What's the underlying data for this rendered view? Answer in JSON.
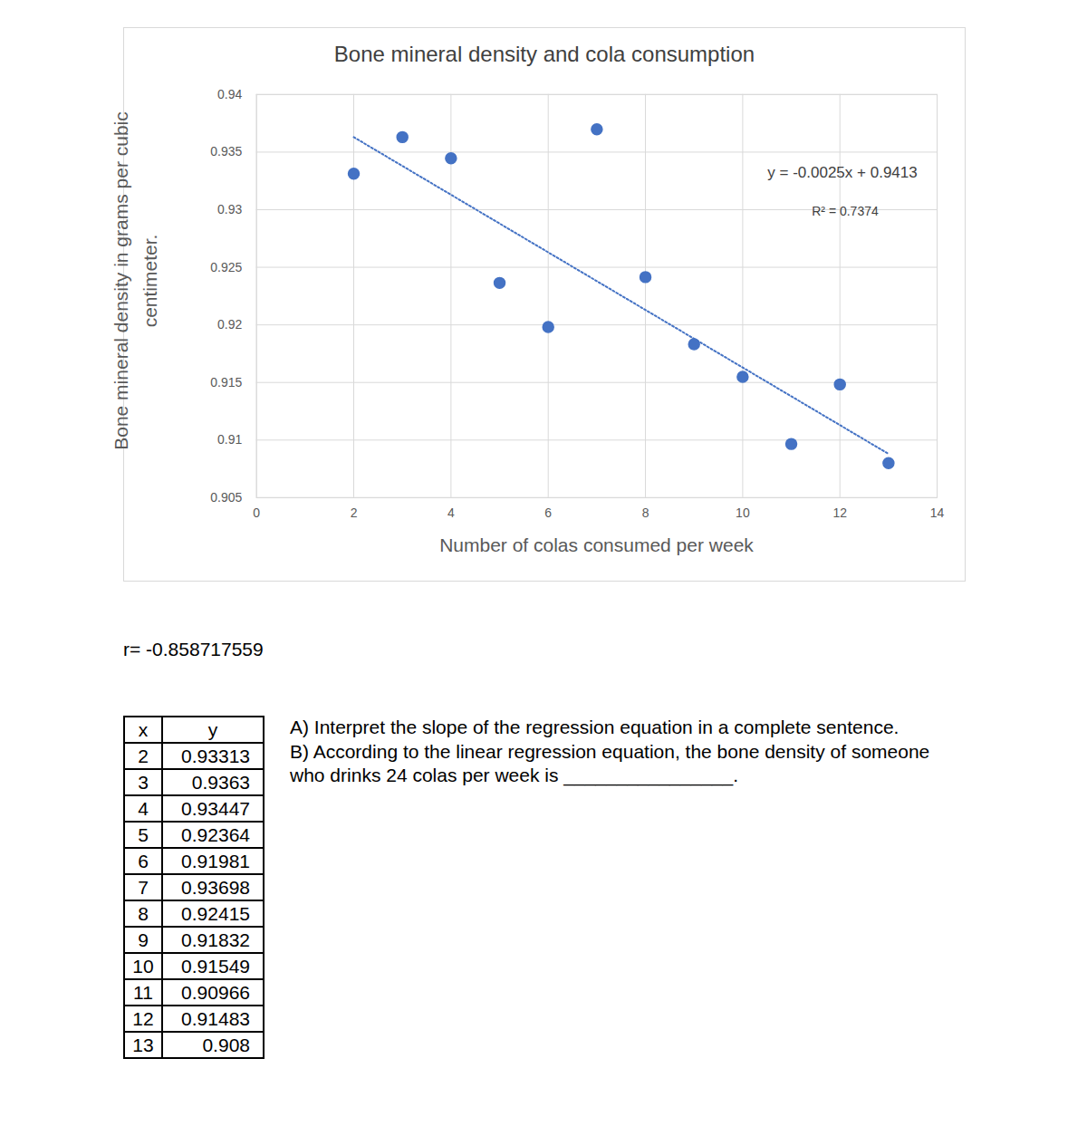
{
  "chart_data": {
    "type": "scatter",
    "title": "Bone mineral density and cola consumption",
    "x_label": "Number of colas consumed per week",
    "y_label": [
      "Bone mineral density in grams per cubic",
      "centimeter."
    ],
    "x": [
      2,
      3,
      4,
      5,
      6,
      7,
      8,
      9,
      10,
      11,
      12,
      13
    ],
    "values": [
      0.93313,
      0.9363,
      0.93447,
      0.92364,
      0.91981,
      0.93698,
      0.92415,
      0.91832,
      0.91549,
      0.90966,
      0.91483,
      0.908
    ],
    "color": "#4472c4",
    "marker": "circle",
    "xlim": [
      0,
      14
    ],
    "xticks": [
      0,
      2,
      4,
      6,
      8,
      10,
      12,
      14
    ],
    "ylim": [
      0.905,
      0.94
    ],
    "yticks": [
      0.905,
      0.91,
      0.915,
      0.92,
      0.925,
      0.93,
      0.935,
      0.94
    ],
    "grid": true,
    "trendline": {
      "x": [
        2,
        13
      ],
      "values": [
        0.9363,
        0.9088
      ],
      "line_style": "dotted",
      "color": "#4472c4"
    },
    "annotations": [
      "y = -0.0025x + 0.9413",
      "R² = 0.7374"
    ]
  },
  "document": {
    "r_text": "r= -0.858717559",
    "table": {
      "header": [
        "x",
        "y"
      ]
    },
    "questions": [
      "A) Interpret the slope of the regression equation in a complete sentence.",
      "B) According to the linear regression equation, the bone density of someone who drinks 24 colas per week is ________________."
    ]
  }
}
